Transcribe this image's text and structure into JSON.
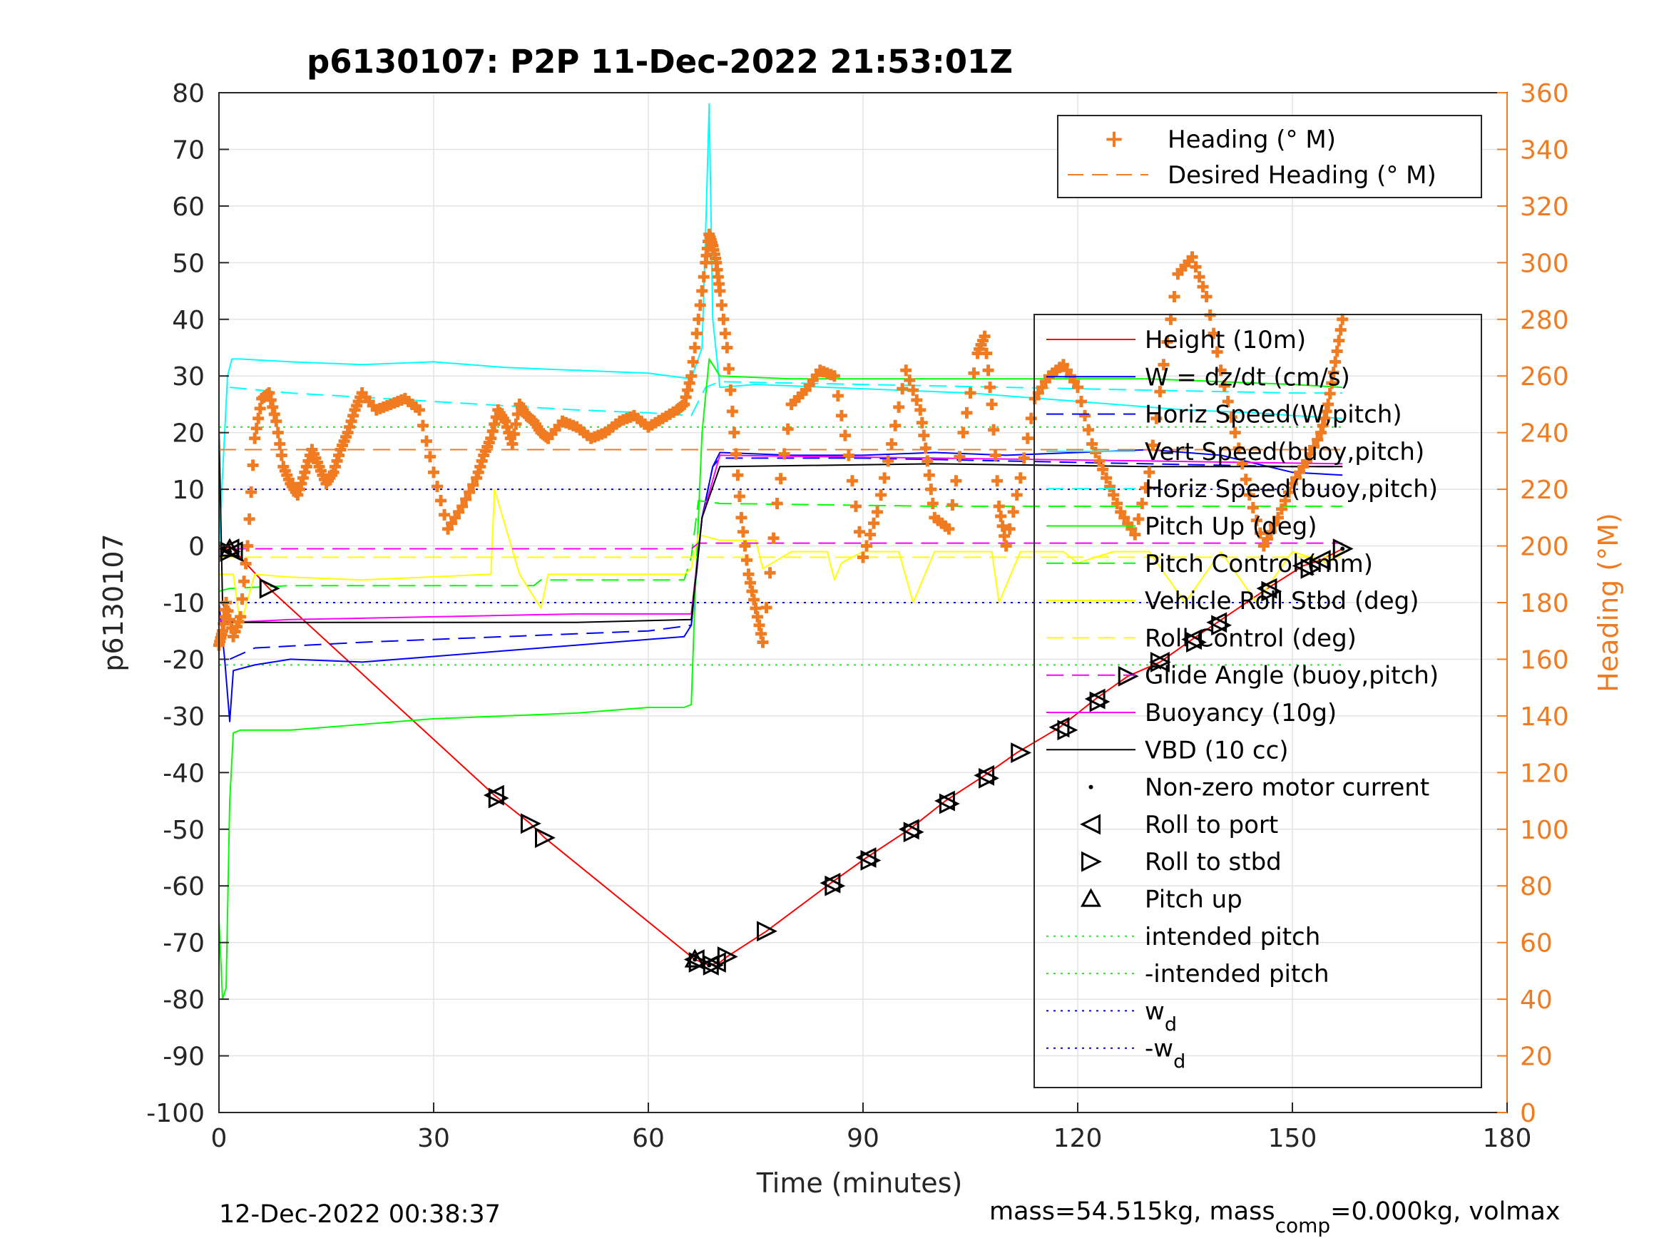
{
  "chart_data": {
    "type": "line",
    "title": "p6130107: P2P 11-Dec-2022 21:53:01Z",
    "xlabel": "Time (minutes)",
    "ylabel": "p6130107",
    "ylabel_right": "Heading (°M)",
    "xlim": [
      0,
      180
    ],
    "ylim": [
      -100,
      80
    ],
    "ylim_right": [
      0,
      360
    ],
    "xticks": [
      "0",
      "30",
      "60",
      "90",
      "120",
      "150",
      "180"
    ],
    "yticks": [
      "-100",
      "-90",
      "-80",
      "-70",
      "-60",
      "-50",
      "-40",
      "-30",
      "-20",
      "-10",
      "0",
      "10",
      "20",
      "30",
      "40",
      "50",
      "60",
      "70",
      "80"
    ],
    "yticks_right": [
      "0",
      "20",
      "40",
      "60",
      "80",
      "100",
      "120",
      "140",
      "160",
      "180",
      "200",
      "220",
      "240",
      "260",
      "280",
      "300",
      "320",
      "340",
      "360"
    ],
    "grid": true,
    "footer_left": "12-Dec-2022 00:38:37",
    "footer_right": {
      "pre": "mass=54.515kg, mass",
      "sub": "comp",
      "post": "=0.000kg, volmax"
    },
    "legend_top": {
      "position": "top-right",
      "entries": [
        "Heading (° M)",
        "Desired Heading (° M)"
      ]
    },
    "legend_main": {
      "position": "right",
      "entries": [
        {
          "label": "Height (10m)",
          "color": "#ff0000",
          "style": "solid"
        },
        {
          "label": "W = dz/dt (cm/s)",
          "color": "#0000ff",
          "style": "solid"
        },
        {
          "label": "Horiz Speed(W,pitch)",
          "color": "#0000ff",
          "style": "dashed"
        },
        {
          "label": "Vert Speed(buoy,pitch)",
          "color": "#00ffff",
          "style": "solid"
        },
        {
          "label": "Horiz Speed(buoy,pitch)",
          "color": "#00ffff",
          "style": "dashed"
        },
        {
          "label": "Pitch Up (deg)",
          "color": "#00ff00",
          "style": "solid"
        },
        {
          "label": "Pitch Control (mm)",
          "color": "#00ff00",
          "style": "dashed"
        },
        {
          "label": "Vehicle Roll Stbd (deg)",
          "color": "#ffff00",
          "style": "solid"
        },
        {
          "label": "Roll Control (deg)",
          "color": "#ffff00",
          "style": "dashed"
        },
        {
          "label": "Glide Angle (buoy,pitch)",
          "color": "#ff00ff",
          "style": "dashed"
        },
        {
          "label": "Buoyancy (10g)",
          "color": "#ff00ff",
          "style": "solid"
        },
        {
          "label": "VBD (10 cc)",
          "color": "#000000",
          "style": "solid"
        },
        {
          "label": "Non-zero motor current",
          "color": "#000000",
          "style": "dot"
        },
        {
          "label": "Roll to port",
          "color": "#000000",
          "style": "tri-left"
        },
        {
          "label": "Roll to stbd",
          "color": "#000000",
          "style": "tri-right"
        },
        {
          "label": "Pitch up",
          "color": "#000000",
          "style": "tri-up"
        },
        {
          "label": "intended pitch",
          "color": "#00ff00",
          "style": "dotted"
        },
        {
          "label": "-intended pitch",
          "color": "#00ff00",
          "style": "dotted"
        },
        {
          "label": "w",
          "sub": "d",
          "color": "#0000ff",
          "style": "dotted"
        },
        {
          "label": "-w",
          "sub": "d",
          "color": "#0000ff",
          "style": "dotted"
        }
      ]
    },
    "series": [
      {
        "name": "Height (10m)",
        "color": "#ff0000",
        "style": "solid",
        "axis": "left",
        "x": [
          0.5,
          1.5,
          7,
          38.5,
          43.5,
          45.5,
          66.5,
          68.5,
          70,
          71,
          76.5,
          85.5,
          90.5,
          96.5,
          101.5,
          107,
          111.5,
          117.5,
          122.5,
          127,
          131.5,
          136,
          139.5,
          146.5,
          151.5,
          154,
          157
        ],
        "y": [
          -1,
          0,
          -7.5,
          -44,
          -49,
          -51.5,
          -73,
          -74,
          -73.5,
          -72.5,
          -68,
          -59.5,
          -55,
          -50,
          -45,
          -40.5,
          -36.5,
          -32,
          -27,
          -23,
          -20.5,
          -16.5,
          -13.5,
          -7.5,
          -3.5,
          -2.5,
          -0.5
        ]
      },
      {
        "name": "W = dz/dt (cm/s)",
        "color": "#0000ff",
        "style": "solid",
        "axis": "left",
        "x": [
          0,
          0.8,
          1.5,
          2,
          5,
          10,
          20,
          30,
          40,
          50,
          60,
          65,
          66,
          67.5,
          69,
          70,
          80,
          90,
          100,
          110,
          120,
          130,
          140,
          150,
          157
        ],
        "y": [
          -10,
          -20,
          -31,
          -22,
          -21,
          -20,
          -20.5,
          -19.5,
          -18.5,
          -17.5,
          -16.5,
          -16,
          -14,
          5,
          14,
          16.5,
          16,
          16,
          16.5,
          16,
          16.5,
          17,
          16,
          13,
          12.5
        ]
      },
      {
        "name": "Horiz Speed(W,pitch)",
        "color": "#0000ff",
        "style": "dashed",
        "axis": "left",
        "x": [
          1.5,
          5,
          20,
          40,
          60,
          66,
          67.5,
          69,
          70,
          90,
          110,
          130,
          150,
          157
        ],
        "y": [
          -20,
          -18,
          -17,
          -16,
          -15,
          -14,
          5,
          14,
          15.5,
          15.5,
          15,
          14.5,
          14,
          14
        ]
      },
      {
        "name": "Vert Speed(buoy,pitch)",
        "color": "#00ffff",
        "style": "solid",
        "axis": "left",
        "x": [
          0,
          1.2,
          1.8,
          3,
          10,
          20,
          30,
          40,
          50,
          60,
          66,
          67.5,
          68,
          68.5,
          69,
          70,
          75,
          85,
          95,
          105,
          115,
          125,
          135,
          145,
          150,
          157
        ],
        "y": [
          0,
          30,
          33,
          33,
          32.5,
          32,
          32.5,
          31.5,
          31,
          30.5,
          29.5,
          35,
          55,
          78,
          40,
          28,
          28.5,
          28,
          27.5,
          27,
          26,
          25,
          24,
          23.5,
          23,
          22.5
        ]
      },
      {
        "name": "Horiz Speed(buoy,pitch)",
        "color": "#00ffff",
        "style": "dashed",
        "axis": "left",
        "x": [
          1.5,
          10,
          30,
          50,
          60,
          66,
          68,
          70,
          90,
          110,
          130,
          150,
          157
        ],
        "y": [
          28,
          27,
          25.5,
          24,
          23.5,
          23,
          28,
          29,
          28.5,
          28,
          27.5,
          27,
          27
        ]
      },
      {
        "name": "Pitch Up (deg)",
        "color": "#00ff00",
        "style": "solid",
        "axis": "left",
        "x": [
          0,
          0.5,
          1,
          1.5,
          2,
          3,
          10,
          20,
          30,
          40,
          50,
          60,
          65,
          66,
          66.5,
          67.5,
          68.5,
          69,
          70,
          80,
          90,
          100,
          110,
          120,
          130,
          140,
          150,
          157
        ],
        "y": [
          -66,
          -80,
          -78,
          -45,
          -33,
          -32.5,
          -32.5,
          -31.5,
          -30.5,
          -30,
          -29.5,
          -28.5,
          -28.5,
          -28,
          -10,
          20,
          33,
          32,
          30,
          29.5,
          29.5,
          29.5,
          29.5,
          29.5,
          29.5,
          29,
          28.5,
          28
        ]
      },
      {
        "name": "Pitch Control (mm)",
        "color": "#00ff00",
        "style": "dashed",
        "axis": "left",
        "x": [
          0,
          1.5,
          10,
          44,
          45,
          65,
          66,
          67,
          70,
          100,
          150,
          157
        ],
        "y": [
          -8,
          -7.5,
          -7,
          -7,
          -6,
          -6,
          -2,
          8,
          7.5,
          7,
          7,
          7
        ]
      },
      {
        "name": "Vehicle Roll Stbd (deg)",
        "color": "#ffff00",
        "style": "solid",
        "axis": "left",
        "x": [
          0,
          2,
          3,
          5,
          10,
          20,
          38,
          38.5,
          42,
          45,
          46,
          60,
          65,
          66,
          67,
          70,
          75,
          76,
          80,
          85,
          86,
          87,
          90,
          95,
          97,
          100,
          108,
          109,
          112,
          118,
          120,
          125,
          130,
          135,
          140,
          145,
          150,
          155,
          157
        ],
        "y": [
          -5,
          -5,
          -14,
          -5,
          -5.5,
          -6,
          -5,
          10,
          -5,
          -11,
          -5,
          -5,
          -5,
          -4,
          2,
          1,
          1,
          -4,
          -1,
          -1,
          -6,
          -3,
          -1,
          -1,
          -10,
          -1,
          -1,
          -10,
          -1,
          -1,
          -3,
          -1,
          -1,
          -10,
          -1,
          -10,
          -1,
          -3,
          -1
        ]
      },
      {
        "name": "Roll Control (deg)",
        "color": "#ffff00",
        "style": "dashed",
        "axis": "left",
        "x": [
          0,
          70,
          157
        ],
        "y": [
          -2,
          -2,
          -2
        ]
      },
      {
        "name": "Glide Angle (buoy,pitch)",
        "color": "#ff00ff",
        "style": "dashed",
        "axis": "left",
        "x": [
          1.5,
          66,
          67,
          157
        ],
        "y": [
          -0.5,
          -0.5,
          0.5,
          0.5
        ]
      },
      {
        "name": "Buoyancy (10g)",
        "color": "#ff00ff",
        "style": "solid",
        "axis": "left",
        "x": [
          0,
          1.5,
          10,
          30,
          50,
          66,
          67.5,
          70,
          100,
          130,
          157
        ],
        "y": [
          -13,
          -13.5,
          -13,
          -12.5,
          -12,
          -12,
          5,
          16,
          15.5,
          15,
          14.5
        ]
      },
      {
        "name": "VBD (10 cc)",
        "color": "#000000",
        "style": "solid",
        "axis": "left",
        "x": [
          0,
          0.5,
          1.5,
          10,
          30,
          50,
          66,
          67.5,
          70,
          100,
          130,
          157
        ],
        "y": [
          21,
          -10,
          -13.5,
          -13.5,
          -13.5,
          -13.5,
          -13,
          5,
          14,
          14.5,
          14,
          14
        ]
      },
      {
        "name": "intended pitch",
        "color": "#00ff00",
        "style": "dotted",
        "axis": "left",
        "x": [
          0,
          157
        ],
        "y": [
          21,
          21
        ]
      },
      {
        "name": "-intended pitch",
        "color": "#00ff00",
        "style": "dotted",
        "axis": "left",
        "x": [
          0,
          157
        ],
        "y": [
          -21,
          -21
        ]
      },
      {
        "name": "wd",
        "color": "#0000ff",
        "style": "dotted",
        "axis": "left",
        "x": [
          0,
          157
        ],
        "y": [
          10,
          10
        ]
      },
      {
        "name": "-wd",
        "color": "#0000ff",
        "style": "dotted",
        "axis": "left",
        "x": [
          0,
          157
        ],
        "y": [
          -10,
          -10
        ]
      },
      {
        "name": "Desired Heading (° M)",
        "color": "#f07b21",
        "style": "dashed",
        "axis": "right",
        "x": [
          0,
          157
        ],
        "y": [
          234,
          234
        ]
      },
      {
        "name": "Heading (° M)",
        "color": "#f07b21",
        "style": "plus",
        "axis": "right",
        "x": [
          0,
          0.5,
          1,
          2,
          3,
          4,
          5,
          6,
          7,
          8,
          9,
          10,
          11,
          12,
          13,
          14,
          15,
          16,
          17,
          18,
          19,
          20,
          22,
          24,
          26,
          28,
          30,
          32,
          34,
          36,
          37,
          38,
          39,
          40,
          41,
          42,
          43,
          44,
          45,
          46,
          48,
          50,
          52,
          54,
          56,
          58,
          60,
          62,
          64,
          65,
          66,
          67,
          68,
          68.5,
          69,
          69.5,
          70,
          71,
          72,
          73,
          74,
          75,
          76,
          78,
          80,
          82,
          84,
          86,
          88,
          90,
          92,
          94,
          96,
          98,
          99,
          100,
          102,
          104,
          106,
          107,
          108,
          109,
          110,
          112,
          114,
          116,
          118,
          120,
          122,
          124,
          126,
          128,
          130,
          132,
          134,
          136,
          138,
          140,
          142,
          144,
          146,
          148,
          150,
          152,
          154,
          155,
          156,
          157
        ],
        "y": [
          165,
          170,
          180,
          168,
          175,
          200,
          238,
          252,
          254,
          244,
          228,
          222,
          218,
          226,
          234,
          228,
          222,
          226,
          234,
          240,
          248,
          254,
          248,
          250,
          252,
          248,
          226,
          206,
          214,
          224,
          232,
          238,
          248,
          244,
          236,
          250,
          246,
          244,
          240,
          238,
          244,
          242,
          238,
          240,
          244,
          246,
          242,
          245,
          248,
          250,
          260,
          280,
          300,
          310,
          306,
          300,
          290,
          270,
          240,
          210,
          190,
          178,
          166,
          215,
          250,
          255,
          262,
          260,
          232,
          196,
          212,
          236,
          262,
          248,
          230,
          210,
          206,
          240,
          268,
          274,
          250,
          214,
          200,
          224,
          252,
          260,
          264,
          256,
          236,
          224,
          212,
          204,
          226,
          264,
          296,
          302,
          288,
          262,
          240,
          218,
          200,
          210,
          222,
          230,
          240,
          250,
          265,
          280
        ]
      },
      {
        "name": "Roll to port",
        "color": "#000000",
        "style": "tri-left",
        "axis": "left",
        "x": [
          1.5,
          2,
          38.5,
          66.5,
          68.5,
          69.5,
          85.5,
          90.5,
          96.5,
          101.5,
          107,
          117.5,
          122.5,
          131.5,
          136,
          139.5,
          146.5,
          151.5,
          154
        ],
        "y": [
          -0.5,
          -1,
          -44,
          -73,
          -74,
          -73.5,
          -59.5,
          -55,
          -50,
          -45,
          -40.5,
          -32,
          -27,
          -20.5,
          -16.5,
          -13.5,
          -7.5,
          -3.5,
          -2.5
        ]
      },
      {
        "name": "Roll to stbd",
        "color": "#000000",
        "style": "tri-right",
        "axis": "left",
        "x": [
          1.5,
          7,
          39,
          43.5,
          45.5,
          67,
          69,
          71,
          76.5,
          86,
          91,
          97,
          102,
          107.5,
          112,
          118.5,
          123,
          127,
          131.5,
          136.5,
          140,
          147,
          152.5,
          157
        ],
        "y": [
          -1,
          -7.5,
          -44.5,
          -49,
          -51.5,
          -73.5,
          -74,
          -72.5,
          -68,
          -60,
          -55.5,
          -50.5,
          -45.5,
          -41,
          -36.5,
          -32.5,
          -27.5,
          -23,
          -20.5,
          -17,
          -14,
          -8,
          -4,
          -0.5
        ]
      },
      {
        "name": "Pitch up",
        "color": "#000000",
        "style": "tri-up",
        "axis": "left",
        "x": [
          1.5,
          66.5
        ],
        "y": [
          -0.5,
          -73
        ]
      },
      {
        "name": "Non-zero motor current",
        "color": "#000000",
        "style": "dot",
        "axis": "left",
        "x": [
          1.5,
          66.5,
          68.5,
          157
        ],
        "y": [
          -1,
          -73,
          -74,
          -0.5
        ]
      }
    ]
  }
}
